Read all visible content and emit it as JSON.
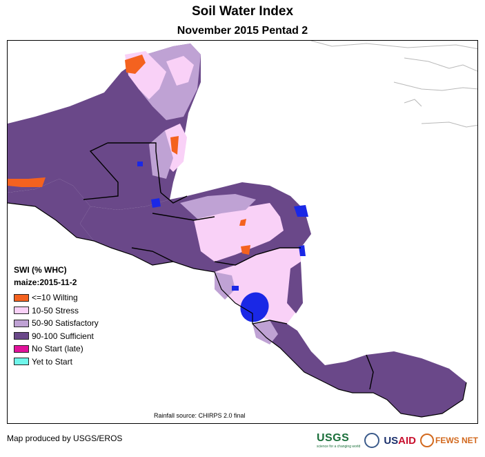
{
  "header": {
    "title": "Soil Water Index",
    "subtitle": "November 2015 Pentad 2"
  },
  "legend": {
    "title": "SWI (% WHC)",
    "subtitle": "maize:2015-11-2",
    "items": [
      {
        "label": "<=10 Wilting",
        "color": "#f4621f"
      },
      {
        "label": "10-50 Stress",
        "color": "#f9d1f7"
      },
      {
        "label": "50-90 Satisfactory",
        "color": "#bfa2d4"
      },
      {
        "label": "90-100 Sufficient",
        "color": "#6a4889"
      },
      {
        "label": "No Start (late)",
        "color": "#e0129a"
      },
      {
        "label": "Yet to Start",
        "color": "#6ff5ea"
      }
    ]
  },
  "map": {
    "rainfall_source": "Rainfall source: CHIRPS 2.0 final",
    "water_color": "#1a28e6",
    "border_color": "#000000",
    "coast_color": "#b8b8b8"
  },
  "footer": {
    "credit": "Map produced by USGS/EROS",
    "logos": {
      "usgs": "USGS",
      "usgs_tagline": "science for a changing world",
      "usaid_left": "US",
      "usaid_right": "AID",
      "fews": "FEWS NET"
    }
  }
}
